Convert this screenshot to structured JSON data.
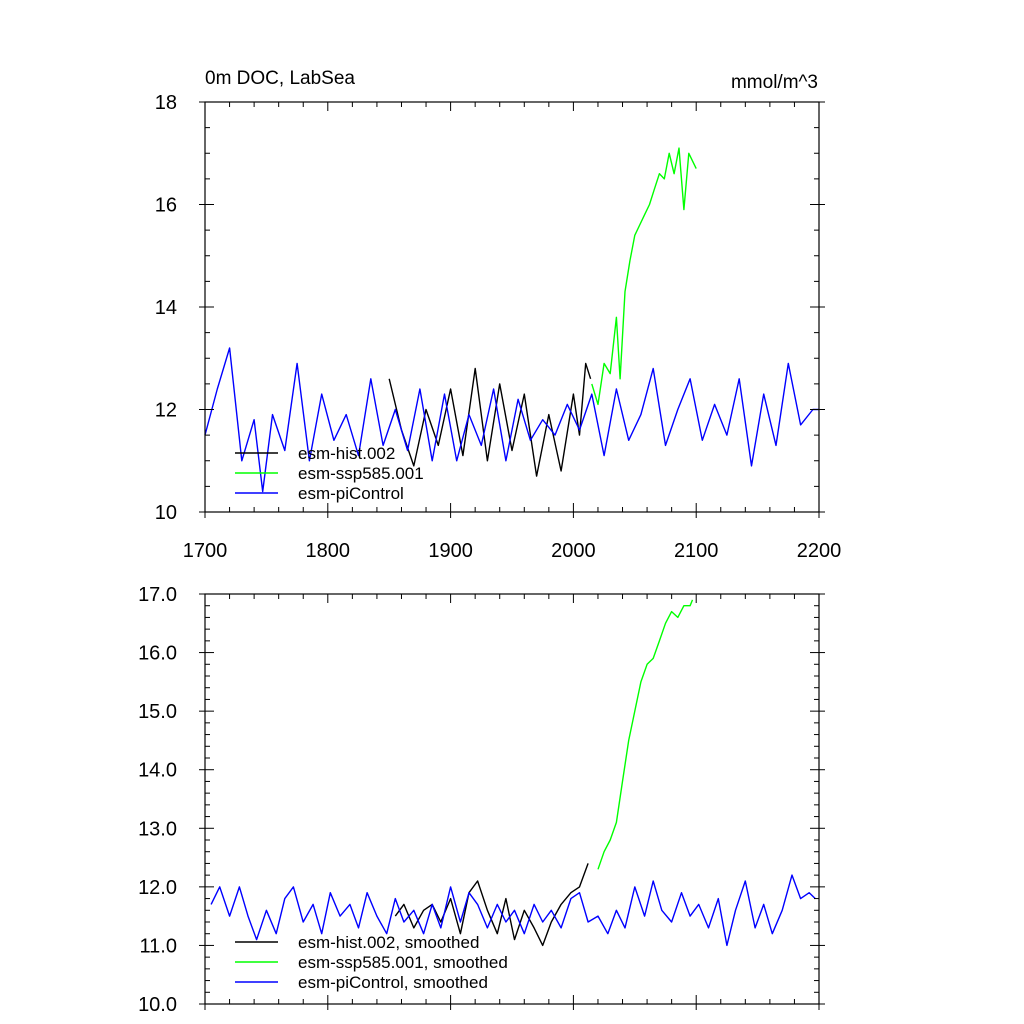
{
  "chart_data": [
    {
      "type": "line",
      "title_left": "0m DOC, LabSea",
      "title_right": "mmol/m^3",
      "xlim": [
        1700,
        2200
      ],
      "ylim": [
        10,
        18
      ],
      "xticks": [
        "1700",
        "1800",
        "1900",
        "2000",
        "2100",
        "2200"
      ],
      "yticks": [
        "10",
        "12",
        "14",
        "16",
        "18"
      ],
      "grid": false,
      "legend_position": "bottom-left",
      "series": [
        {
          "name": "esm-hist.002",
          "color": "#000000",
          "x": [
            1850,
            1860,
            1870,
            1880,
            1890,
            1900,
            1910,
            1920,
            1930,
            1940,
            1950,
            1960,
            1970,
            1980,
            1990,
            2000,
            2005,
            2010,
            2014
          ],
          "y": [
            12.6,
            11.6,
            10.9,
            12.0,
            11.3,
            12.4,
            11.1,
            12.8,
            11.0,
            12.5,
            11.2,
            12.3,
            10.7,
            11.9,
            10.8,
            12.3,
            11.5,
            12.9,
            12.6
          ]
        },
        {
          "name": "esm-ssp585.001",
          "color": "#00ff00",
          "x": [
            2015,
            2020,
            2025,
            2030,
            2035,
            2038,
            2042,
            2046,
            2050,
            2054,
            2058,
            2062,
            2066,
            2070,
            2074,
            2078,
            2082,
            2086,
            2090,
            2094,
            2100
          ],
          "y": [
            12.5,
            12.1,
            12.9,
            12.7,
            13.8,
            12.6,
            14.3,
            14.9,
            15.4,
            15.6,
            15.8,
            16.0,
            16.3,
            16.6,
            16.5,
            17.0,
            16.6,
            17.1,
            15.9,
            17.0,
            16.7
          ]
        },
        {
          "name": "esm-piControl",
          "color": "#0000ff",
          "x": [
            1700,
            1710,
            1720,
            1730,
            1740,
            1747,
            1755,
            1765,
            1775,
            1785,
            1795,
            1805,
            1815,
            1825,
            1835,
            1845,
            1855,
            1865,
            1875,
            1885,
            1895,
            1905,
            1915,
            1925,
            1935,
            1945,
            1955,
            1965,
            1975,
            1985,
            1995,
            2005,
            2015,
            2025,
            2035,
            2045,
            2055,
            2065,
            2075,
            2085,
            2095,
            2105,
            2115,
            2125,
            2135,
            2145,
            2155,
            2165,
            2175,
            2185,
            2195,
            2200
          ],
          "y": [
            11.5,
            12.4,
            13.2,
            11.0,
            11.8,
            10.4,
            11.9,
            11.2,
            12.9,
            11.0,
            12.3,
            11.4,
            11.9,
            11.1,
            12.6,
            11.3,
            12.0,
            11.2,
            12.4,
            11.0,
            12.3,
            11.0,
            11.9,
            11.3,
            12.4,
            11.0,
            12.2,
            11.4,
            11.8,
            11.5,
            12.1,
            11.6,
            12.3,
            11.1,
            12.4,
            11.4,
            11.9,
            12.8,
            11.3,
            12.0,
            12.6,
            11.4,
            12.1,
            11.5,
            12.6,
            10.9,
            12.3,
            11.3,
            12.9,
            11.7,
            12.0,
            12.0
          ]
        }
      ]
    },
    {
      "type": "line",
      "xlim": [
        1700,
        2200
      ],
      "ylim": [
        10.0,
        17.0
      ],
      "xticks": [],
      "yticks": [
        "10.0",
        "11.0",
        "12.0",
        "13.0",
        "14.0",
        "15.0",
        "16.0",
        "17.0"
      ],
      "grid": false,
      "legend_position": "bottom-left",
      "series": [
        {
          "name": "esm-hist.002, smoothed",
          "color": "#000000",
          "x": [
            1855,
            1862,
            1870,
            1878,
            1885,
            1892,
            1900,
            1908,
            1915,
            1922,
            1930,
            1938,
            1945,
            1952,
            1960,
            1968,
            1975,
            1982,
            1990,
            1998,
            2005,
            2012
          ],
          "y": [
            11.5,
            11.7,
            11.3,
            11.6,
            11.7,
            11.4,
            11.8,
            11.2,
            11.9,
            12.1,
            11.6,
            11.2,
            11.8,
            11.1,
            11.6,
            11.3,
            11.0,
            11.4,
            11.7,
            11.9,
            12.0,
            12.4
          ]
        },
        {
          "name": "esm-ssp585.001, smoothed",
          "color": "#00ff00",
          "x": [
            2020,
            2025,
            2030,
            2035,
            2040,
            2045,
            2050,
            2055,
            2060,
            2065,
            2070,
            2075,
            2080,
            2085,
            2090,
            2095,
            2097
          ],
          "y": [
            12.3,
            12.6,
            12.8,
            13.1,
            13.8,
            14.5,
            15.0,
            15.5,
            15.8,
            15.9,
            16.2,
            16.5,
            16.7,
            16.6,
            16.8,
            16.8,
            16.9
          ]
        },
        {
          "name": "esm-piControl, smoothed",
          "color": "#0000ff",
          "x": [
            1705,
            1712,
            1720,
            1728,
            1735,
            1742,
            1750,
            1758,
            1765,
            1772,
            1780,
            1788,
            1795,
            1802,
            1810,
            1818,
            1825,
            1832,
            1840,
            1848,
            1855,
            1862,
            1870,
            1878,
            1885,
            1892,
            1900,
            1908,
            1915,
            1922,
            1930,
            1938,
            1945,
            1952,
            1960,
            1968,
            1975,
            1982,
            1990,
            1998,
            2005,
            2012,
            2020,
            2028,
            2035,
            2042,
            2050,
            2058,
            2065,
            2072,
            2080,
            2088,
            2095,
            2102,
            2110,
            2118,
            2125,
            2132,
            2140,
            2148,
            2155,
            2162,
            2170,
            2178,
            2185,
            2192,
            2197
          ],
          "y": [
            11.7,
            12.0,
            11.5,
            12.0,
            11.5,
            11.1,
            11.6,
            11.2,
            11.8,
            12.0,
            11.4,
            11.7,
            11.2,
            11.9,
            11.5,
            11.7,
            11.3,
            11.9,
            11.5,
            11.2,
            11.8,
            11.4,
            11.6,
            11.2,
            11.7,
            11.3,
            12.0,
            11.4,
            11.9,
            11.7,
            11.3,
            11.7,
            11.4,
            11.6,
            11.2,
            11.7,
            11.4,
            11.6,
            11.3,
            11.8,
            11.9,
            11.4,
            11.5,
            11.2,
            11.6,
            11.3,
            12.0,
            11.5,
            12.1,
            11.6,
            11.4,
            11.9,
            11.5,
            11.7,
            11.3,
            11.8,
            11.0,
            11.6,
            12.1,
            11.3,
            11.7,
            11.2,
            11.6,
            12.2,
            11.8,
            11.9,
            11.8
          ]
        }
      ]
    }
  ]
}
